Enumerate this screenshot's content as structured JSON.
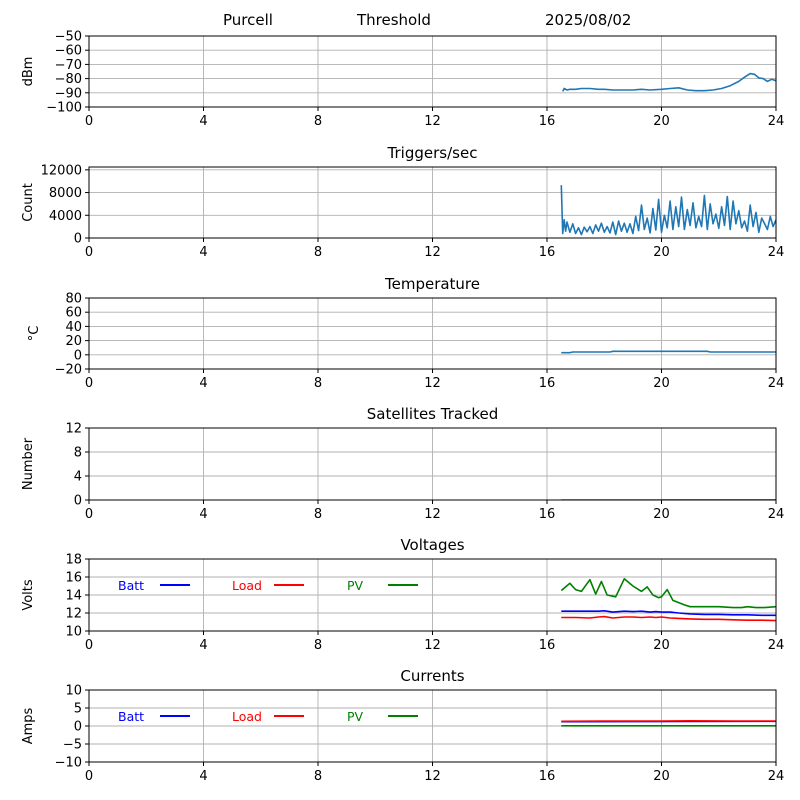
{
  "header": {
    "station": "Purcell",
    "mode": "Threshold",
    "date": "2025/08/02"
  },
  "chart_data": [
    {
      "type": "line",
      "title": "",
      "xlabel": "",
      "ylabel": "dBm",
      "xlim": [
        0,
        24
      ],
      "ylim": [
        -100,
        -50
      ],
      "xticks": [
        0,
        4,
        8,
        12,
        16,
        20,
        24
      ],
      "yticks": [
        -100,
        -90,
        -80,
        -70,
        -60,
        -50
      ],
      "grid": true,
      "colors": [
        "#1f77b4"
      ],
      "series": [
        {
          "x": [
            16.55,
            16.6,
            16.7,
            16.8,
            17.0,
            17.2,
            17.5,
            17.8,
            18.0,
            18.3,
            18.6,
            19.0,
            19.3,
            19.6,
            20.0,
            20.3,
            20.6,
            20.9,
            21.2,
            21.5,
            21.8,
            22.1,
            22.4,
            22.7,
            22.9,
            23.1,
            23.25,
            23.4,
            23.55,
            23.7,
            23.85,
            24.0
          ],
          "y": [
            -89,
            -87,
            -88,
            -87.5,
            -87.5,
            -87,
            -87,
            -87.5,
            -87.5,
            -88,
            -88,
            -88,
            -87.5,
            -88,
            -87.5,
            -87,
            -86.5,
            -88,
            -88.5,
            -88.5,
            -88,
            -87,
            -85,
            -82,
            -79,
            -76.5,
            -77,
            -79.5,
            -80,
            -82,
            -80.5,
            -81.5
          ]
        }
      ]
    },
    {
      "type": "line",
      "title": "Triggers/sec",
      "xlabel": "",
      "ylabel": "Count",
      "xlim": [
        0,
        24
      ],
      "ylim": [
        0,
        12500
      ],
      "xticks": [
        0,
        4,
        8,
        12,
        16,
        20,
        24
      ],
      "yticks": [
        0,
        4000,
        8000,
        12000
      ],
      "grid": true,
      "colors": [
        "#1f77b4"
      ],
      "series": [
        {
          "x": [
            16.5,
            16.55,
            16.6,
            16.65,
            16.7,
            16.8,
            16.9,
            17.0,
            17.1,
            17.2,
            17.3,
            17.4,
            17.5,
            17.6,
            17.7,
            17.8,
            17.9,
            18.0,
            18.1,
            18.2,
            18.3,
            18.4,
            18.5,
            18.6,
            18.7,
            18.8,
            18.9,
            19.0,
            19.1,
            19.2,
            19.3,
            19.4,
            19.5,
            19.6,
            19.7,
            19.8,
            19.9,
            20.0,
            20.1,
            20.2,
            20.3,
            20.4,
            20.5,
            20.6,
            20.7,
            20.8,
            20.9,
            21.0,
            21.1,
            21.2,
            21.3,
            21.4,
            21.5,
            21.6,
            21.7,
            21.8,
            21.9,
            22.0,
            22.1,
            22.2,
            22.3,
            22.4,
            22.5,
            22.6,
            22.7,
            22.8,
            22.9,
            23.0,
            23.1,
            23.2,
            23.3,
            23.4,
            23.5,
            23.6,
            23.7,
            23.8,
            23.9,
            24.0
          ],
          "y": [
            9300,
            800,
            3200,
            1200,
            2800,
            1000,
            2500,
            800,
            1800,
            600,
            1900,
            1100,
            2000,
            800,
            2300,
            1200,
            2600,
            1000,
            2000,
            900,
            2800,
            600,
            3000,
            1200,
            2600,
            1000,
            2500,
            800,
            3800,
            1300,
            5800,
            1500,
            3500,
            900,
            5200,
            1400,
            6800,
            1000,
            4000,
            1800,
            6500,
            1500,
            5500,
            2000,
            7200,
            1500,
            5000,
            2200,
            6200,
            1800,
            3800,
            2000,
            7500,
            1500,
            6000,
            2500,
            4200,
            1700,
            5500,
            2200,
            7300,
            1500,
            6500,
            2500,
            4800,
            1800,
            3000,
            1200,
            5800,
            2000,
            4500,
            1000,
            3500,
            2500,
            1500,
            3800,
            2000,
            3200
          ]
        }
      ]
    },
    {
      "type": "line",
      "title": "Temperature",
      "xlabel": "",
      "ylabel": "°C",
      "xlim": [
        0,
        24
      ],
      "ylim": [
        -20,
        80
      ],
      "xticks": [
        0,
        4,
        8,
        12,
        16,
        20,
        24
      ],
      "yticks": [
        -20,
        0,
        20,
        40,
        60,
        80
      ],
      "grid": true,
      "colors": [
        "#1f77b4"
      ],
      "series": [
        {
          "x": [
            16.5,
            16.8,
            16.9,
            18.2,
            18.3,
            21.6,
            21.7,
            24.0
          ],
          "y": [
            3,
            3,
            4,
            4,
            5,
            5,
            4,
            4
          ]
        }
      ]
    },
    {
      "type": "line",
      "title": "Satellites Tracked",
      "xlabel": "",
      "ylabel": "Number",
      "xlim": [
        0,
        24
      ],
      "ylim": [
        0,
        12
      ],
      "xticks": [
        0,
        4,
        8,
        12,
        16,
        20,
        24
      ],
      "yticks": [
        0,
        4,
        8,
        12
      ],
      "grid": true,
      "colors": [
        "#1f77b4",
        "#2ca02c"
      ],
      "series": [
        {
          "x": [
            16.5,
            24.0
          ],
          "y": [
            0,
            0
          ]
        },
        {
          "x": [
            20.0,
            24.0
          ],
          "y": [
            0,
            0
          ]
        }
      ]
    },
    {
      "type": "line",
      "title": "Voltages",
      "xlabel": "",
      "ylabel": "Volts",
      "xlim": [
        0,
        24
      ],
      "ylim": [
        10,
        18
      ],
      "xticks": [
        0,
        4,
        8,
        12,
        16,
        20,
        24
      ],
      "yticks": [
        10,
        12,
        14,
        16,
        18
      ],
      "grid": true,
      "legend_position": "inline-top-left",
      "series": [
        {
          "name": "Batt",
          "color": "#0000ff",
          "x": [
            16.5,
            17.0,
            17.5,
            17.8,
            18.0,
            18.3,
            18.7,
            19.0,
            19.3,
            19.6,
            19.8,
            20.0,
            20.3,
            20.6,
            21.0,
            21.5,
            22.0,
            22.5,
            23.0,
            23.5,
            24.0
          ],
          "y": [
            12.2,
            12.2,
            12.2,
            12.2,
            12.25,
            12.1,
            12.2,
            12.15,
            12.2,
            12.1,
            12.15,
            12.1,
            12.1,
            12.0,
            11.9,
            11.85,
            11.85,
            11.8,
            11.8,
            11.75,
            11.75
          ]
        },
        {
          "name": "Load",
          "color": "#ff0000",
          "x": [
            16.5,
            17.0,
            17.5,
            17.8,
            18.0,
            18.3,
            18.7,
            19.0,
            19.3,
            19.6,
            19.8,
            20.0,
            20.3,
            20.6,
            21.0,
            21.5,
            22.0,
            22.5,
            23.0,
            23.5,
            24.0
          ],
          "y": [
            11.5,
            11.5,
            11.45,
            11.55,
            11.6,
            11.45,
            11.55,
            11.55,
            11.5,
            11.55,
            11.5,
            11.55,
            11.45,
            11.4,
            11.35,
            11.3,
            11.3,
            11.25,
            11.2,
            11.2,
            11.15
          ]
        },
        {
          "name": "PV",
          "color": "#008000",
          "x": [
            16.5,
            16.8,
            17.0,
            17.2,
            17.5,
            17.7,
            17.9,
            18.1,
            18.4,
            18.7,
            19.0,
            19.3,
            19.5,
            19.7,
            19.9,
            20.0,
            20.2,
            20.4,
            20.8,
            21.0,
            21.5,
            22.0,
            22.5,
            22.8,
            23.0,
            23.3,
            23.6,
            24.0
          ],
          "y": [
            14.5,
            15.3,
            14.6,
            14.4,
            15.7,
            14.1,
            15.5,
            14.0,
            13.8,
            15.8,
            15.0,
            14.4,
            14.9,
            14.0,
            13.7,
            13.8,
            14.6,
            13.4,
            12.9,
            12.7,
            12.7,
            12.7,
            12.6,
            12.6,
            12.7,
            12.6,
            12.6,
            12.7
          ]
        }
      ]
    },
    {
      "type": "line",
      "title": "Currents",
      "xlabel": "",
      "ylabel": "Amps",
      "xlim": [
        0,
        24
      ],
      "ylim": [
        -10,
        10
      ],
      "xticks": [
        0,
        4,
        8,
        12,
        16,
        20,
        24
      ],
      "yticks": [
        -10,
        -5,
        0,
        5,
        10
      ],
      "grid": true,
      "legend_position": "inline-top-left",
      "series": [
        {
          "name": "Batt",
          "color": "#0000ff",
          "x": [
            16.5,
            24.0
          ],
          "y": [
            1.2,
            1.3
          ]
        },
        {
          "name": "Load",
          "color": "#ff0000",
          "x": [
            16.5,
            18.0,
            20.0,
            21.0,
            22.5,
            24.0
          ],
          "y": [
            1.3,
            1.35,
            1.4,
            1.45,
            1.4,
            1.4
          ]
        },
        {
          "name": "PV",
          "color": "#008000",
          "x": [
            16.5,
            24.0
          ],
          "y": [
            0.05,
            0.05
          ]
        }
      ]
    }
  ]
}
